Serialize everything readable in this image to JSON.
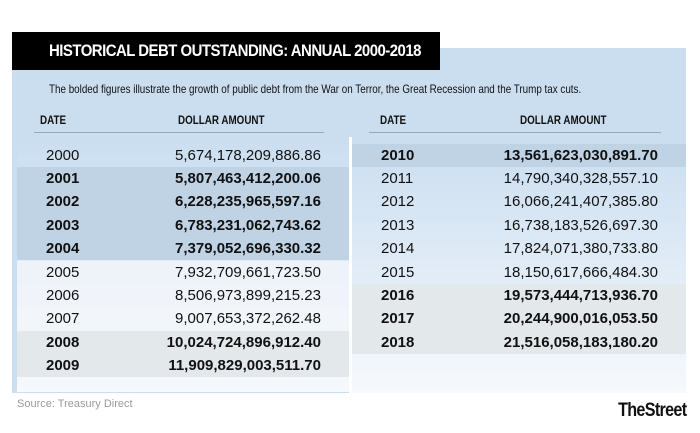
{
  "title": "HISTORICAL DEBT OUTSTANDING: ANNUAL 2000-2018",
  "subtitle": "The bolded figures illustrate the growth of public debt from the War on Terror, the Great Recession and the Trump tax cuts.",
  "headers": {
    "date": "DATE",
    "amount": "DOLLAR AMOUNT"
  },
  "left_rows": [
    {
      "year": "2000",
      "amount": "5,674,178,209,886.86",
      "bold": false
    },
    {
      "year": "2001",
      "amount": "5,807,463,412,200.06",
      "bold": true
    },
    {
      "year": "2002",
      "amount": "6,228,235,965,597.16",
      "bold": true
    },
    {
      "year": "2003",
      "amount": "6,783,231,062,743.62",
      "bold": true
    },
    {
      "year": "2004",
      "amount": "7,379,052,696,330.32",
      "bold": true
    },
    {
      "year": "2005",
      "amount": "7,932,709,661,723.50",
      "bold": false
    },
    {
      "year": "2006",
      "amount": "8,506,973,899,215.23",
      "bold": false
    },
    {
      "year": "2007",
      "amount": "9,007,653,372,262.48",
      "bold": false
    },
    {
      "year": "2008",
      "amount": "10,024,724,896,912.40",
      "bold": true
    },
    {
      "year": "2009",
      "amount": "11,909,829,003,511.70",
      "bold": true
    }
  ],
  "right_rows": [
    {
      "year": "2010",
      "amount": "13,561,623,030,891.70",
      "bold": true
    },
    {
      "year": "2011",
      "amount": "14,790,340,328,557.10",
      "bold": false
    },
    {
      "year": "2012",
      "amount": "16,066,241,407,385.80",
      "bold": false
    },
    {
      "year": "2013",
      "amount": "16,738,183,526,697.30",
      "bold": false
    },
    {
      "year": "2014",
      "amount": "17,824,071,380,733.80",
      "bold": false
    },
    {
      "year": "2015",
      "amount": "18,150,617,666,484.30",
      "bold": false
    },
    {
      "year": "2016",
      "amount": "19,573,444,713,936.70",
      "bold": true
    },
    {
      "year": "2017",
      "amount": "20,244,900,016,053.50",
      "bold": true
    },
    {
      "year": "2018",
      "amount": "21,516,058,183,180.20",
      "bold": true
    }
  ],
  "source": "Source: Treasury Direct",
  "logo": "TheStreet",
  "colors": {
    "panel": "#cbdef0",
    "title_bg": "#000000",
    "bold_band_blue": "#bccfe1",
    "bold_band_grey": "#e3e8eb"
  }
}
